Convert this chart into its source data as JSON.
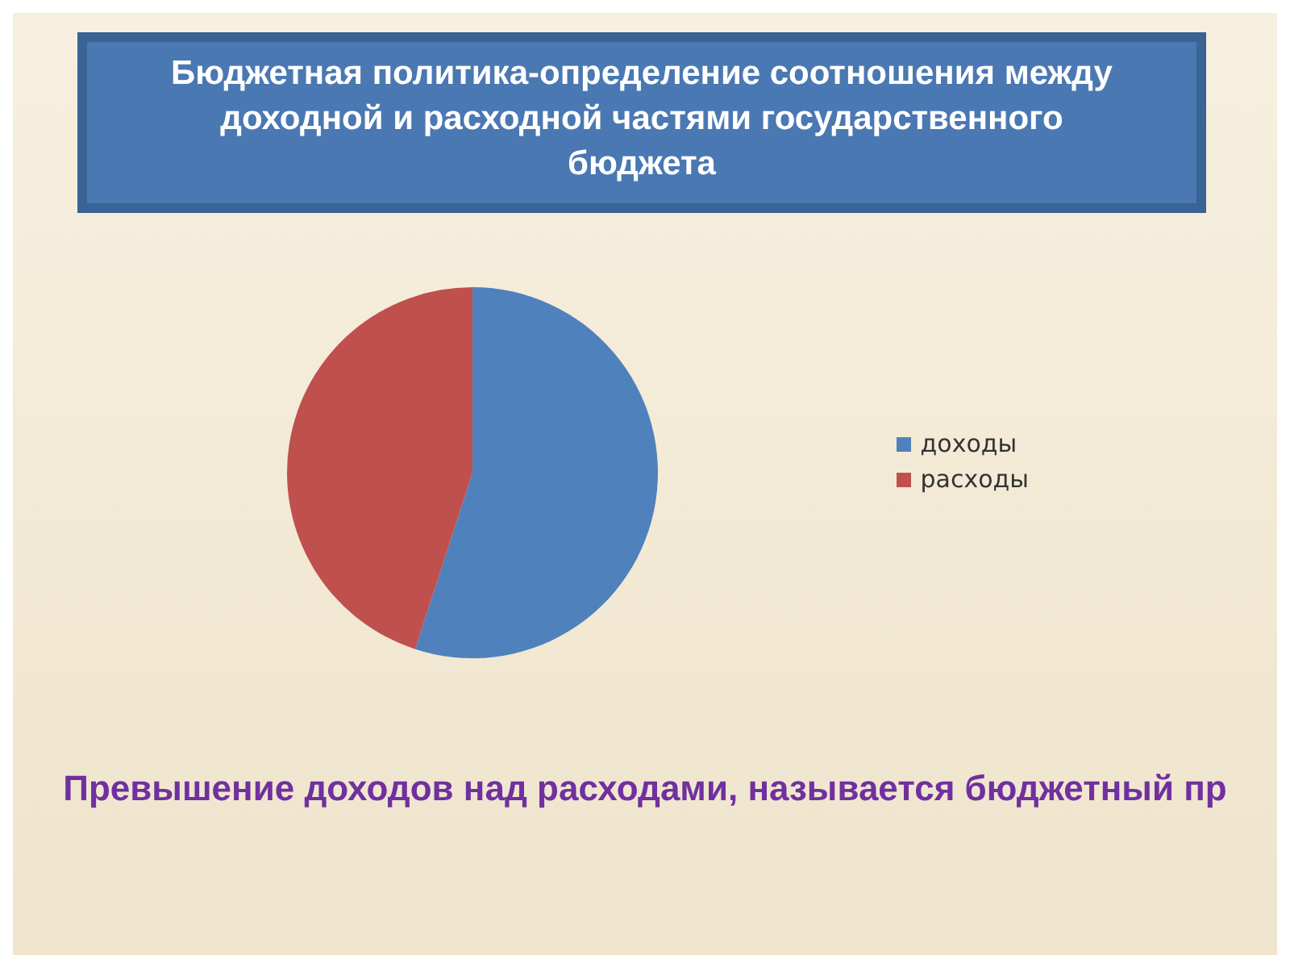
{
  "chart_data": {
    "type": "pie",
    "title": "Бюджетная политика-определение соотношения между доходной и расходной частями государственного бюджета",
    "categories": [
      "доходы",
      "расходы"
    ],
    "values": [
      55,
      45
    ],
    "colors": [
      "#4f81bd",
      "#c0504d"
    ],
    "legend": "right",
    "annotations": [
      "Превышение доходов над расходами, называется бюджетный пр"
    ]
  }
}
